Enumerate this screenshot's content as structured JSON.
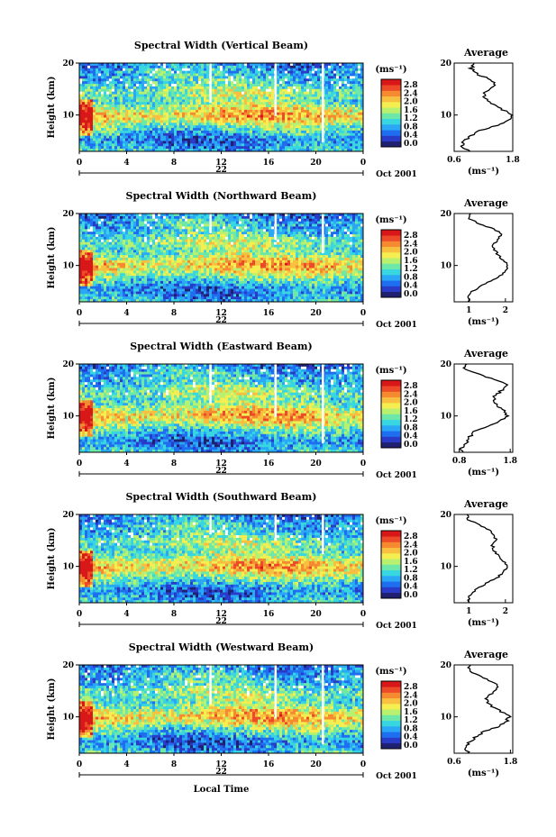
{
  "page": {
    "xlabel": "Local Time",
    "date_label": "Oct 2001"
  },
  "colorbar": {
    "unit": "(ms⁻¹)",
    "ticks": [
      "2.8",
      "2.4",
      "2.0",
      "1.6",
      "1.2",
      "0.8",
      "0.4",
      "0.0"
    ],
    "colors": [
      "#202070",
      "#2a3bc8",
      "#1f6ef0",
      "#2aa8f5",
      "#38d6e0",
      "#6ee8a8",
      "#b8f070",
      "#f5ee50",
      "#f8c040",
      "#f58a30",
      "#ec4a28",
      "#d81818"
    ]
  },
  "chart_data": [
    {
      "type": "heatmap",
      "title": "Spectral Width (Vertical Beam)",
      "ylabel": "Height (km)",
      "xlim": [
        0,
        24
      ],
      "ylim": [
        3,
        20
      ],
      "x_ticks": [
        "0",
        "4",
        "8",
        "12",
        "16",
        "20",
        "0"
      ],
      "y_ticks": [
        "20",
        "10"
      ],
      "day_marker": "22",
      "profile": {
        "title": "Average",
        "xlabel": "(ms⁻¹)",
        "x_ticks": [
          "0.6",
          "1.8"
        ],
        "xlim": [
          0.6,
          1.8
        ],
        "y_ticks": [
          "20",
          "10"
        ],
        "heights": [
          3,
          4,
          5,
          6,
          7,
          8,
          9,
          10,
          11,
          12,
          13,
          14,
          15,
          16,
          17,
          18,
          19,
          20
        ],
        "values": [
          0.9,
          0.75,
          0.8,
          0.95,
          1.1,
          1.5,
          1.7,
          1.78,
          1.6,
          1.4,
          1.25,
          1.2,
          1.3,
          1.45,
          1.3,
          1.05,
          0.95,
          1.0
        ]
      }
    },
    {
      "type": "heatmap",
      "title": "Spectral Width (Northward Beam)",
      "ylabel": "Height (km)",
      "xlim": [
        0,
        24
      ],
      "ylim": [
        3,
        20
      ],
      "x_ticks": [
        "0",
        "4",
        "8",
        "12",
        "16",
        "20",
        "0"
      ],
      "y_ticks": [
        "20",
        "10"
      ],
      "day_marker": "22",
      "profile": {
        "title": "Average",
        "xlabel": "(ms⁻¹)",
        "x_ticks": [
          "1",
          "2"
        ],
        "xlim": [
          0.6,
          2.2
        ],
        "y_ticks": [
          "20",
          "10"
        ],
        "heights": [
          3,
          4,
          5,
          6,
          7,
          8,
          9,
          10,
          11,
          12,
          13,
          14,
          15,
          16,
          17,
          18,
          19,
          20
        ],
        "values": [
          1.0,
          1.0,
          1.1,
          1.3,
          1.6,
          1.85,
          2.0,
          2.05,
          1.95,
          1.8,
          1.7,
          1.65,
          1.8,
          1.9,
          1.7,
          1.3,
          1.0,
          1.05
        ]
      }
    },
    {
      "type": "heatmap",
      "title": "Spectral Width (Eastward Beam)",
      "ylabel": "Height (km)",
      "xlim": [
        0,
        24
      ],
      "ylim": [
        3,
        20
      ],
      "x_ticks": [
        "0",
        "4",
        "8",
        "12",
        "16",
        "20",
        "0"
      ],
      "y_ticks": [
        "20",
        "10"
      ],
      "day_marker": "22",
      "profile": {
        "title": "Average",
        "xlabel": "(ms⁻¹)",
        "x_ticks": [
          "0.8",
          "1.8"
        ],
        "xlim": [
          0.7,
          1.85
        ],
        "y_ticks": [
          "20",
          "10"
        ],
        "heights": [
          3,
          4,
          5,
          6,
          7,
          8,
          9,
          10,
          11,
          12,
          13,
          14,
          15,
          16,
          17,
          18,
          19,
          20
        ],
        "values": [
          0.85,
          0.85,
          0.95,
          1.0,
          1.1,
          1.35,
          1.6,
          1.75,
          1.7,
          1.55,
          1.5,
          1.5,
          1.65,
          1.75,
          1.5,
          1.2,
          0.9,
          0.95
        ]
      }
    },
    {
      "type": "heatmap",
      "title": "Spectral Width (Southward Beam)",
      "ylabel": "Height (km)",
      "xlim": [
        0,
        24
      ],
      "ylim": [
        3,
        20
      ],
      "x_ticks": [
        "0",
        "4",
        "8",
        "12",
        "16",
        "20",
        "0"
      ],
      "y_ticks": [
        "20",
        "10"
      ],
      "day_marker": "22",
      "profile": {
        "title": "Average",
        "xlabel": "(ms⁻¹)",
        "x_ticks": [
          "1",
          "2"
        ],
        "xlim": [
          0.6,
          2.2
        ],
        "y_ticks": [
          "20",
          "10"
        ],
        "heights": [
          3,
          4,
          5,
          6,
          7,
          8,
          9,
          10,
          11,
          12,
          13,
          14,
          15,
          16,
          17,
          18,
          19,
          20
        ],
        "values": [
          1.0,
          1.0,
          1.1,
          1.3,
          1.55,
          1.8,
          1.95,
          2.05,
          1.95,
          1.8,
          1.7,
          1.65,
          1.75,
          1.7,
          1.55,
          1.3,
          1.0,
          0.95
        ]
      }
    },
    {
      "type": "heatmap",
      "title": "Spectral Width (Westward Beam)",
      "ylabel": "Height (km)",
      "xlim": [
        0,
        24
      ],
      "ylim": [
        3,
        20
      ],
      "x_ticks": [
        "0",
        "4",
        "8",
        "12",
        "16",
        "20",
        "0"
      ],
      "y_ticks": [
        "20",
        "10"
      ],
      "day_marker": "22",
      "profile": {
        "title": "Average",
        "xlabel": "(ms⁻¹)",
        "x_ticks": [
          "0.6",
          "1.8"
        ],
        "xlim": [
          0.6,
          1.85
        ],
        "y_ticks": [
          "20",
          "10"
        ],
        "heights": [
          3,
          4,
          5,
          6,
          7,
          8,
          9,
          10,
          11,
          12,
          13,
          14,
          15,
          16,
          17,
          18,
          19,
          20
        ],
        "values": [
          0.9,
          0.85,
          0.9,
          1.05,
          1.2,
          1.5,
          1.7,
          1.78,
          1.6,
          1.4,
          1.3,
          1.3,
          1.5,
          1.55,
          1.35,
          1.1,
          0.9,
          0.95
        ]
      }
    }
  ]
}
